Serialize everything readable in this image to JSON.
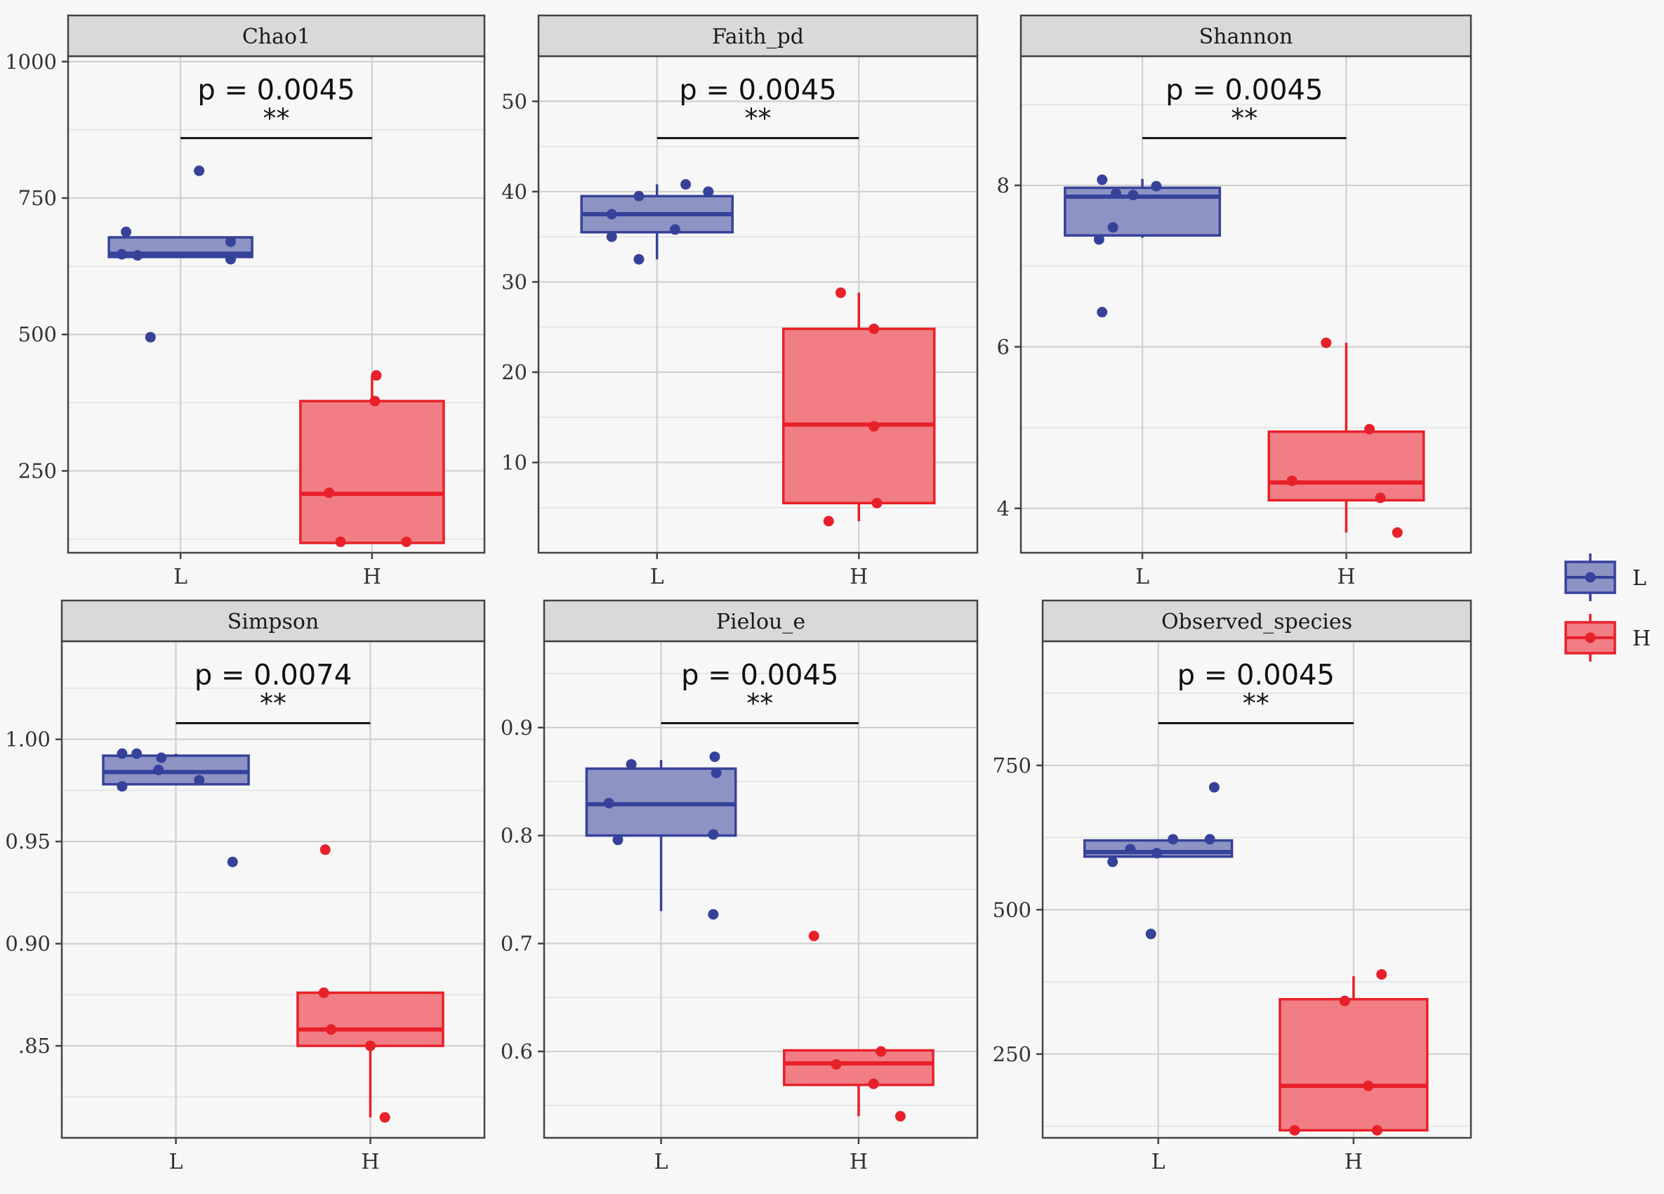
{
  "chart_data": [
    {
      "type": "box",
      "title": "Chao1",
      "categories": [
        "L",
        "H"
      ],
      "ylim": [
        100,
        1010
      ],
      "yticks": [
        250,
        500,
        750,
        1000
      ],
      "annotation": {
        "p_label": "p = 0.0045",
        "stars": "**"
      },
      "boxes": [
        {
          "group": "L",
          "min": 640,
          "q1": 642,
          "median": 648,
          "q3": 678,
          "max": 680,
          "points": [
            [
              -0.38,
              688
            ],
            [
              -0.41,
              647
            ],
            [
              -0.3,
              645
            ],
            [
              -0.21,
              495
            ],
            [
              0.13,
              800
            ],
            [
              0.35,
              670
            ],
            [
              0.35,
              638
            ]
          ]
        },
        {
          "group": "H",
          "min": 118,
          "q1": 118,
          "median": 208,
          "q3": 378,
          "max": 425,
          "points": [
            [
              0.03,
              425
            ],
            [
              0.02,
              378
            ],
            [
              -0.3,
              210
            ],
            [
              -0.22,
              120
            ],
            [
              0.24,
              120
            ]
          ]
        }
      ]
    },
    {
      "type": "box",
      "title": "Faith_pd",
      "categories": [
        "L",
        "H"
      ],
      "ylim": [
        0,
        55
      ],
      "yticks": [
        10,
        20,
        30,
        40,
        50
      ],
      "annotation": {
        "p_label": "p = 0.0045",
        "stars": "**"
      },
      "boxes": [
        {
          "group": "L",
          "min": 32.5,
          "q1": 35.5,
          "median": 37.5,
          "q3": 39.5,
          "max": 40.8,
          "points": [
            [
              -0.3,
              37.5
            ],
            [
              -0.3,
              35
            ],
            [
              -0.12,
              32.5
            ],
            [
              -0.12,
              39.5
            ],
            [
              0.12,
              35.8
            ],
            [
              0.19,
              40.8
            ],
            [
              0.34,
              40
            ]
          ]
        },
        {
          "group": "H",
          "min": 3.5,
          "q1": 5.5,
          "median": 14.2,
          "q3": 24.8,
          "max": 28.8,
          "points": [
            [
              -0.12,
              28.8
            ],
            [
              0.1,
              24.8
            ],
            [
              0.1,
              14
            ],
            [
              -0.2,
              3.5
            ],
            [
              0.12,
              5.5
            ]
          ]
        }
      ]
    },
    {
      "type": "box",
      "title": "Shannon",
      "categories": [
        "L",
        "H"
      ],
      "ylim": [
        3.45,
        9.6
      ],
      "yticks": [
        4,
        6,
        8
      ],
      "annotation": {
        "p_label": "p = 0.0045",
        "stars": "**"
      },
      "boxes": [
        {
          "group": "L",
          "min": 7.35,
          "q1": 7.38,
          "median": 7.86,
          "q3": 7.97,
          "max": 8.08,
          "points": [
            [
              -0.26,
              8.07
            ],
            [
              -0.28,
              7.33
            ],
            [
              -0.19,
              7.48
            ],
            [
              -0.06,
              7.88
            ],
            [
              -0.26,
              6.43
            ],
            [
              0.09,
              7.99
            ],
            [
              -0.17,
              7.9
            ]
          ]
        },
        {
          "group": "H",
          "min": 3.7,
          "q1": 4.1,
          "median": 4.32,
          "q3": 4.95,
          "max": 6.05,
          "points": [
            [
              -0.13,
              6.05
            ],
            [
              0.15,
              4.98
            ],
            [
              -0.35,
              4.34
            ],
            [
              0.22,
              4.13
            ],
            [
              0.33,
              3.7
            ]
          ]
        }
      ]
    },
    {
      "type": "box",
      "title": "Simpson",
      "categories": [
        "L",
        "H"
      ],
      "ylim": [
        0.805,
        1.048
      ],
      "yticks": [
        0.85,
        0.9,
        0.95,
        1.0
      ],
      "yticklabels": [
        ".85",
        "0.90",
        "0.95",
        "1.00"
      ],
      "annotation": {
        "p_label": "p = 0.0074",
        "stars": "**"
      },
      "boxes": [
        {
          "group": "L",
          "min": 0.978,
          "q1": 0.978,
          "median": 0.984,
          "q3": 0.992,
          "max": 0.993,
          "points": [
            [
              -0.37,
              0.993
            ],
            [
              -0.27,
              0.993
            ],
            [
              -0.1,
              0.991
            ],
            [
              -0.12,
              0.985
            ],
            [
              -0.37,
              0.977
            ],
            [
              0.16,
              0.98
            ],
            [
              0.39,
              0.94
            ]
          ]
        },
        {
          "group": "H",
          "min": 0.815,
          "q1": 0.85,
          "median": 0.858,
          "q3": 0.876,
          "max": 0.876,
          "points": [
            [
              -0.31,
              0.946
            ],
            [
              -0.32,
              0.876
            ],
            [
              -0.27,
              0.858
            ],
            [
              0.0,
              0.85
            ],
            [
              0.1,
              0.815
            ]
          ]
        }
      ]
    },
    {
      "type": "box",
      "title": "Pielou_e",
      "categories": [
        "L",
        "H"
      ],
      "ylim": [
        0.52,
        0.98
      ],
      "yticks": [
        0.6,
        0.7,
        0.8,
        0.9
      ],
      "annotation": {
        "p_label": "p = 0.0045",
        "stars": "**"
      },
      "boxes": [
        {
          "group": "L",
          "min": 0.73,
          "q1": 0.8,
          "median": 0.829,
          "q3": 0.862,
          "max": 0.87,
          "points": [
            [
              -0.35,
              0.83
            ],
            [
              -0.29,
              0.796
            ],
            [
              -0.2,
              0.866
            ],
            [
              0.36,
              0.873
            ],
            [
              0.37,
              0.858
            ],
            [
              0.35,
              0.801
            ],
            [
              0.35,
              0.727
            ]
          ]
        },
        {
          "group": "H",
          "min": 0.54,
          "q1": 0.569,
          "median": 0.589,
          "q3": 0.601,
          "max": 0.601,
          "points": [
            [
              -0.3,
              0.707
            ],
            [
              -0.15,
              0.588
            ],
            [
              0.15,
              0.6
            ],
            [
              0.1,
              0.57
            ],
            [
              0.28,
              0.54
            ]
          ]
        }
      ]
    },
    {
      "type": "box",
      "title": "Observed_species",
      "categories": [
        "L",
        "H"
      ],
      "ylim": [
        105,
        965
      ],
      "yticks": [
        250,
        500,
        750
      ],
      "annotation": {
        "p_label": "p = 0.0045",
        "stars": "**"
      },
      "boxes": [
        {
          "group": "L",
          "min": 590,
          "q1": 592,
          "median": 600,
          "q3": 620,
          "max": 622,
          "points": [
            [
              -0.31,
              583
            ],
            [
              -0.19,
              605
            ],
            [
              -0.01,
              598
            ],
            [
              0.1,
              622
            ],
            [
              0.35,
              622
            ],
            [
              0.38,
              712
            ],
            [
              -0.05,
              458
            ]
          ]
        },
        {
          "group": "H",
          "min": 118,
          "q1": 118,
          "median": 195,
          "q3": 345,
          "max": 385,
          "points": [
            [
              0.19,
              388
            ],
            [
              -0.06,
              342
            ],
            [
              0.1,
              195
            ],
            [
              -0.4,
              118
            ],
            [
              0.16,
              118
            ]
          ]
        }
      ]
    }
  ],
  "legend": {
    "position": "right",
    "entries": [
      {
        "label": "L",
        "fill": "#8d94c4",
        "stroke": "#36429a"
      },
      {
        "label": "H",
        "fill": "#f07e84",
        "stroke": "#e8202a"
      }
    ]
  },
  "colors": {
    "L_fill": "#8d94c4",
    "L_stroke": "#36429a",
    "H_fill": "#f07e84",
    "H_stroke": "#e8202a"
  }
}
